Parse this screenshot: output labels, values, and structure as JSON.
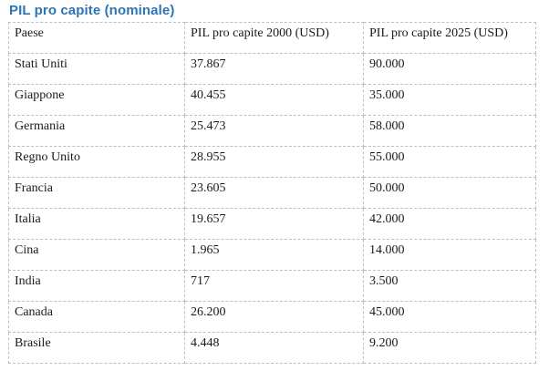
{
  "title": "PIL pro capite (nominale)",
  "colors": {
    "title-color": "#2E74B5",
    "border-color": "#BFBFBF",
    "text-color": "#1a1a1a",
    "bg-color": "#FFFFFF"
  },
  "table": {
    "headers": [
      "Paese",
      "PIL pro capite 2000 (USD)",
      "PIL pro capite 2025 (USD)"
    ],
    "rows": [
      {
        "paese": "Stati Uniti",
        "y2000": "37.867",
        "y2025": "90.000"
      },
      {
        "paese": "Giappone",
        "y2000": "40.455",
        "y2025": "35.000"
      },
      {
        "paese": "Germania",
        "y2000": "25.473",
        "y2025": "58.000"
      },
      {
        "paese": "Regno Unito",
        "y2000": "28.955",
        "y2025": "55.000"
      },
      {
        "paese": "Francia",
        "y2000": "23.605",
        "y2025": "50.000"
      },
      {
        "paese": "Italia",
        "y2000": "19.657",
        "y2025": "42.000"
      },
      {
        "paese": "Cina",
        "y2000": "1.965",
        "y2025": "14.000"
      },
      {
        "paese": "India",
        "y2000": "717",
        "y2025": "3.500"
      },
      {
        "paese": "Canada",
        "y2000": "26.200",
        "y2025": "45.000"
      },
      {
        "paese": "Brasile",
        "y2000": "4.448",
        "y2025": "9.200"
      }
    ]
  }
}
